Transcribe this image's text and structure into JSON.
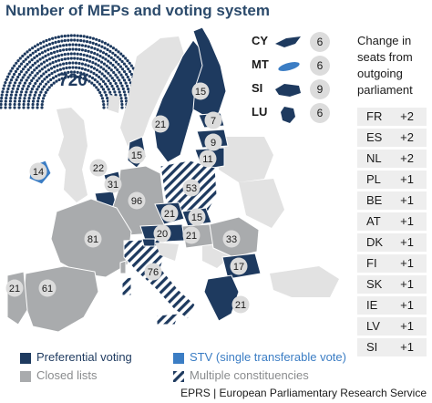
{
  "title": "Number of MEPs and voting system",
  "hemicycle_total": "720",
  "colors": {
    "preferential": "#1e3a5f",
    "closed": "#a9abad",
    "stv": "#3b7dc4",
    "title": "#2b4a6b",
    "badge": "#dcdcdc"
  },
  "countries": [
    {
      "code": "SE",
      "label": "21",
      "system": "preferential"
    },
    {
      "code": "FI",
      "label": "15",
      "system": "preferential"
    },
    {
      "code": "EE",
      "label": "7",
      "system": "preferential"
    },
    {
      "code": "LV",
      "label": "9",
      "system": "preferential"
    },
    {
      "code": "LT",
      "label": "11",
      "system": "preferential"
    },
    {
      "code": "DK",
      "label": "15",
      "system": "preferential"
    },
    {
      "code": "IE",
      "label": "14",
      "system": "stv"
    },
    {
      "code": "NL",
      "label": "31",
      "system": "preferential"
    },
    {
      "code": "BE",
      "label": "22",
      "system": "preferential"
    },
    {
      "code": "DE",
      "label": "96",
      "system": "closed"
    },
    {
      "code": "PL",
      "label": "53",
      "system": "multiple"
    },
    {
      "code": "CZ",
      "label": "21",
      "system": "preferential"
    },
    {
      "code": "SK",
      "label": "15",
      "system": "preferential"
    },
    {
      "code": "AT",
      "label": "20",
      "system": "preferential"
    },
    {
      "code": "HU",
      "label": "21",
      "system": "closed"
    },
    {
      "code": "RO",
      "label": "33",
      "system": "closed"
    },
    {
      "code": "BG",
      "label": "17",
      "system": "preferential"
    },
    {
      "code": "FR",
      "label": "81",
      "system": "closed"
    },
    {
      "code": "ES",
      "label": "61",
      "system": "closed"
    },
    {
      "code": "PT",
      "label": "21",
      "system": "closed"
    },
    {
      "code": "IT",
      "label": "76",
      "system": "multiple"
    },
    {
      "code": "GR",
      "label": "21",
      "system": "preferential"
    }
  ],
  "inset": [
    {
      "code": "CY",
      "value": "6",
      "system": "preferential"
    },
    {
      "code": "MT",
      "value": "6",
      "system": "stv"
    },
    {
      "code": "SI",
      "value": "9",
      "system": "preferential"
    },
    {
      "code": "LU",
      "value": "6",
      "system": "preferential"
    }
  ],
  "change_title": "Change in seats from outgoing parliament",
  "changes": [
    {
      "code": "FR",
      "value": "+2"
    },
    {
      "code": "ES",
      "value": "+2"
    },
    {
      "code": "NL",
      "value": "+2"
    },
    {
      "code": "PL",
      "value": "+1"
    },
    {
      "code": "BE",
      "value": "+1"
    },
    {
      "code": "AT",
      "value": "+1"
    },
    {
      "code": "DK",
      "value": "+1"
    },
    {
      "code": "FI",
      "value": "+1"
    },
    {
      "code": "SK",
      "value": "+1"
    },
    {
      "code": "IE",
      "value": "+1"
    },
    {
      "code": "LV",
      "value": "+1"
    },
    {
      "code": "SI",
      "value": "+1"
    }
  ],
  "legend": {
    "preferential": "Preferential voting",
    "stv": "STV (single transferable vote)",
    "closed": "Closed lists",
    "multiple": "Multiple constituencies"
  },
  "footer": "EPRS | European Parliamentary Research Service"
}
